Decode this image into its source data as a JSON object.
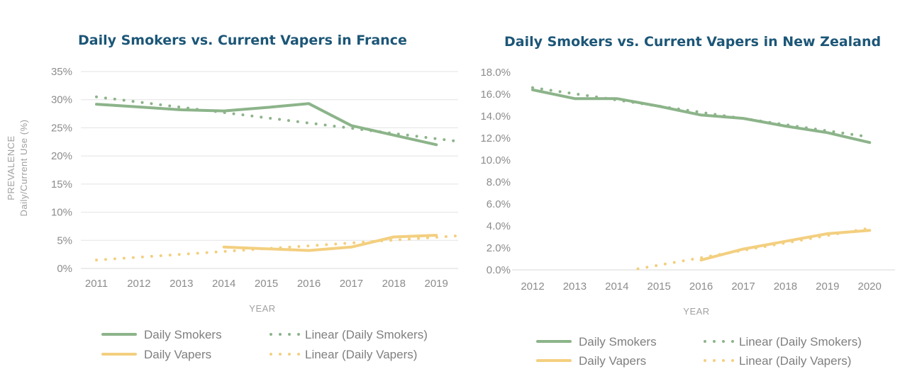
{
  "colors": {
    "smokers": "#8cb48a",
    "vapers": "#f3cf7f",
    "title": "#1c5677"
  },
  "chart_data": [
    {
      "id": "france",
      "type": "line",
      "title": "Daily Smokers vs. Current Vapers in France",
      "xlabel": "YEAR",
      "ylabel": [
        "PREVALENCE",
        "Daily/Current Use (%)"
      ],
      "categories": [
        "2011",
        "2012",
        "2013",
        "2014",
        "2015",
        "2016",
        "2017",
        "2018",
        "2019"
      ],
      "yticks": [
        "0%",
        "5%",
        "10%",
        "15%",
        "20%",
        "25%",
        "30%",
        "35%"
      ],
      "ylim": [
        0,
        35
      ],
      "grid": true,
      "legend_position": "bottom",
      "series": [
        {
          "name": "Daily Smokers",
          "values": [
            29.2,
            28.7,
            28.2,
            28.0,
            28.6,
            29.3,
            25.4,
            23.7,
            22.0
          ]
        },
        {
          "name": "Daily Vapers",
          "values": [
            null,
            null,
            null,
            3.8,
            3.5,
            3.2,
            3.8,
            5.6,
            5.9
          ]
        }
      ],
      "trendlines": [
        {
          "name": "Linear (Daily Smokers)",
          "from": [
            2011,
            30.5
          ],
          "to": [
            2019.5,
            22.6
          ]
        },
        {
          "name": "Linear (Daily Vapers)",
          "from": [
            2011,
            1.5
          ],
          "to": [
            2019.5,
            5.8
          ]
        }
      ]
    },
    {
      "id": "nz",
      "type": "line",
      "title": "Daily Smokers vs. Current Vapers in New Zealand",
      "xlabel": "YEAR",
      "ylabel": [],
      "categories": [
        "2012",
        "2013",
        "2014",
        "2015",
        "2016",
        "2017",
        "2018",
        "2019",
        "2020"
      ],
      "yticks": [
        "0.0%",
        "2.0%",
        "4.0%",
        "6.0%",
        "8.0%",
        "10.0%",
        "12.0%",
        "14.0%",
        "16.0%",
        "18.0%"
      ],
      "ylim": [
        0,
        18
      ],
      "grid": false,
      "legend_position": "bottom",
      "series": [
        {
          "name": "Daily Smokers",
          "values": [
            16.4,
            15.6,
            15.6,
            14.9,
            14.1,
            13.8,
            13.1,
            12.5,
            11.6
          ]
        },
        {
          "name": "Daily Vapers",
          "values": [
            null,
            null,
            null,
            null,
            0.9,
            1.9,
            2.6,
            3.3,
            3.6
          ]
        }
      ],
      "trendlines": [
        {
          "name": "Linear (Daily Smokers)",
          "from": [
            2012,
            16.6
          ],
          "to": [
            2020,
            12.1
          ]
        },
        {
          "name": "Linear (Daily Vapers)",
          "from": [
            2014.5,
            0.1
          ],
          "to": [
            2020,
            3.8
          ]
        }
      ]
    }
  ]
}
